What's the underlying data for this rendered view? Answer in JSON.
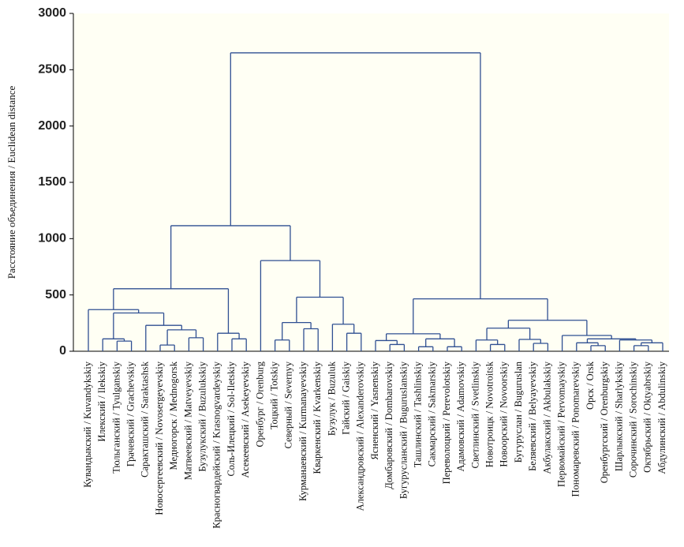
{
  "chart_data": {
    "type": "dendrogram",
    "y_label": "Расстояние объединения / Euclidean distance",
    "ylim": [
      0,
      3000
    ],
    "yticks": [
      0,
      500,
      1000,
      1500,
      2000,
      2500,
      3000
    ],
    "color": "#2f4f92",
    "tree": {
      "height": 2650,
      "children": [
        {
          "height": 1115,
          "children": [
            {
              "height": 555,
              "children": [
                {
                  "height": 370,
                  "children": [
                    "Кувандыкский / Kuvandykskiy",
                    {
                      "height": 340,
                      "children": [
                        {
                          "height": 110,
                          "children": [
                            "Илекский / Ilekskiy",
                            {
                              "height": 90,
                              "children": [
                                "Тюльганский / Tyulganskiy",
                                "Грачевский / Grachevskiy"
                              ]
                            }
                          ]
                        },
                        {
                          "height": 230,
                          "children": [
                            "Саракташский / Saraktashsk",
                            {
                              "height": 190,
                              "children": [
                                {
                                  "height": 55,
                                  "children": [
                                    "Новосергеевский / Novosergeyevskiy",
                                    "Медногорск / Mednogorsk"
                                  ]
                                },
                                {
                                  "height": 120,
                                  "children": [
                                    "Матвеевский / Matveyevskiy",
                                    "Бузулукский / Buzulukskiy"
                                  ]
                                }
                              ]
                            }
                          ]
                        }
                      ]
                    }
                  ]
                },
                {
                  "height": 160,
                  "children": [
                    "Красногвардейский / Krasnogvardeyskiy",
                    {
                      "height": 110,
                      "children": [
                        "Соль-Илецкий / Sol-Iletskiy",
                        "Асекеевский / Asekeyevskiy"
                      ]
                    }
                  ]
                }
              ]
            },
            {
              "height": 805,
              "children": [
                "Оренбург / Orenburg",
                {
                  "height": 480,
                  "children": [
                    {
                      "height": 255,
                      "children": [
                        {
                          "height": 100,
                          "children": [
                            "Тоцкий / Totskiy",
                            "Северный / Severnyy"
                          ]
                        },
                        {
                          "height": 200,
                          "children": [
                            "Курманаевский / Kurmanayevskiy",
                            "Кваркенский / Kvarkenskiy"
                          ]
                        }
                      ]
                    },
                    {
                      "height": 240,
                      "children": [
                        "Бузулук / Buzuluk",
                        {
                          "height": 160,
                          "children": [
                            "Гайский / Gaiskiy",
                            "Александровский / Alexanderovskiy"
                          ]
                        }
                      ]
                    }
                  ]
                }
              ]
            }
          ]
        },
        {
          "height": 465,
          "children": [
            {
              "height": 155,
              "children": [
                {
                  "height": 95,
                  "children": [
                    "Ясненский / Yasnenskiy",
                    {
                      "height": 60,
                      "children": [
                        "Домбаровский / Dombarovskiy",
                        "Бугурусланский / Buguruslanskiy"
                      ]
                    }
                  ]
                },
                {
                  "height": 110,
                  "children": [
                    {
                      "height": 40,
                      "children": [
                        "Ташлинский / Tashlinskiy",
                        "Сакмарский / Sakmarskiy"
                      ]
                    },
                    {
                      "height": 40,
                      "children": [
                        "Переволоцкий / Perevolotskiy",
                        "Адамовский / Adamovskiy"
                      ]
                    }
                  ]
                }
              ]
            },
            {
              "height": 275,
              "children": [
                {
                  "height": 205,
                  "children": [
                    {
                      "height": 100,
                      "children": [
                        "Светлинский / Svetlinskiy",
                        {
                          "height": 60,
                          "children": [
                            "Новотроицк / Novotroitsk",
                            "Новоорский / Novoorskiy"
                          ]
                        }
                      ]
                    },
                    {
                      "height": 105,
                      "children": [
                        "Бугуруслан / Buguruslan",
                        {
                          "height": 70,
                          "children": [
                            "Беляевский / Belyayevskiy",
                            "Акбулакский / Akbulakskiy"
                          ]
                        }
                      ]
                    }
                  ]
                },
                {
                  "height": 140,
                  "children": [
                    "Первомайский / Pervomayskiy",
                    {
                      "height": 110,
                      "children": [
                        {
                          "height": 75,
                          "children": [
                            "Пономаревский / Ponomarevskiy",
                            {
                              "height": 50,
                              "children": [
                                "Орск / Orsk",
                                "Оренбургский / Orenburgskiy"
                              ]
                            }
                          ]
                        },
                        {
                          "height": 100,
                          "children": [
                            "Шарлыкский / Sharlykskiy",
                            {
                              "height": 75,
                              "children": [
                                {
                                  "height": 50,
                                  "children": [
                                    "Сорочинский / Sorochinskiy",
                                    "Октябрьский / Oktyabrskiy"
                                  ]
                                },
                                "Абдулинский / Abdulinskiy"
                              ]
                            }
                          ]
                        }
                      ]
                    }
                  ]
                }
              ]
            }
          ]
        }
      ]
    }
  }
}
